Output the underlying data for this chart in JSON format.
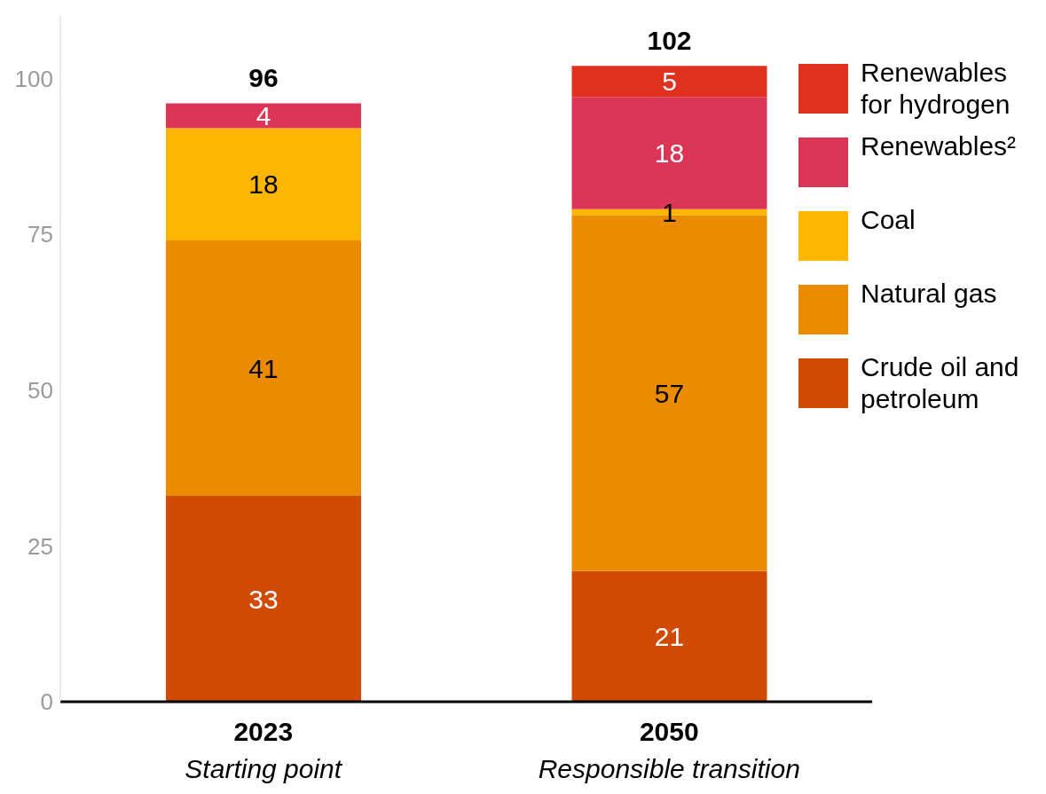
{
  "chart_data": {
    "type": "bar",
    "stacked": true,
    "categories": [
      "2023",
      "2050"
    ],
    "series": [
      {
        "name": "Crude oil and petroleum",
        "color": "#d04a02",
        "values": [
          33,
          21
        ]
      },
      {
        "name": "Natural gas",
        "color": "#eb8c00",
        "values": [
          41,
          57
        ]
      },
      {
        "name": "Coal",
        "color": "#ffb600",
        "values": [
          18,
          1
        ]
      },
      {
        "name": "Renewables²",
        "color": "#db3656",
        "values": [
          4,
          18
        ]
      },
      {
        "name": "Renewables for hydrogen",
        "color": "#e0301e",
        "values": [
          null,
          5
        ]
      }
    ],
    "annotations": [
      "Starting point",
      "Responsible transition"
    ],
    "ylim": [
      0,
      110
    ],
    "yticks": [
      0,
      25,
      50,
      75,
      100
    ],
    "grid": false,
    "legend": "top right",
    "data_labels": true,
    "totals": [
      "96",
      "102"
    ]
  }
}
